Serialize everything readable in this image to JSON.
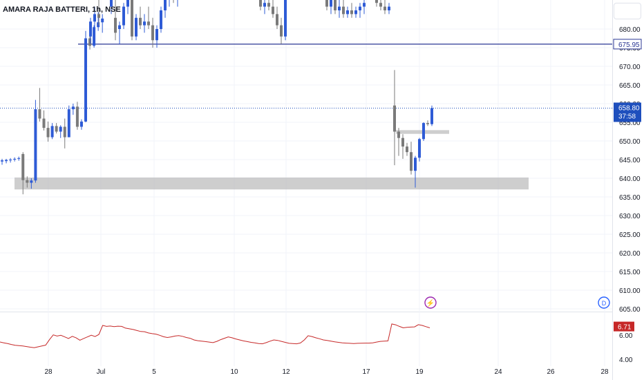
{
  "symbol_title": "AMARA RAJA BATTERI, 1h, NSE",
  "colors": {
    "up": "#2e5bd6",
    "down": "#7a7a7a",
    "hline": "#283593",
    "zone": "#bdbdbd",
    "osc": "#c62828",
    "grid": "#f0f3fa",
    "axis_text": "#131722",
    "price_tag": "#1e4fbd",
    "osc_tag": "#c62828",
    "event_icon": "#9c27b0",
    "div_icon": "#2962ff"
  },
  "icons": {
    "event": "lightning-icon",
    "dividend": "D"
  },
  "price_axis": {
    "ticks": [
      "680.00",
      "675.00",
      "670.00",
      "665.00",
      "660.00",
      "655.00",
      "650.00",
      "645.00",
      "640.00",
      "635.00",
      "630.00",
      "625.00",
      "620.00",
      "615.00",
      "610.00",
      "605.00"
    ]
  },
  "osc_axis": {
    "ticks": [
      "6.00",
      "4.00"
    ]
  },
  "time_axis": {
    "labels": [
      "28",
      "Jul",
      "5",
      "10",
      "12",
      "17",
      "19",
      "24",
      "26",
      "28"
    ]
  },
  "labels": {
    "hline_price": "675.95",
    "last_price": "658.80",
    "countdown": "37:58",
    "osc_value": "6.71"
  },
  "chart_data": [
    {
      "type": "candlestick",
      "title": "AMARA RAJA BATTERI, 1h, NSE",
      "ylim": [
        603,
        686
      ],
      "candles": [
        {
          "o": 644.5,
          "h": 645.2,
          "l": 643.6,
          "c": 644.8
        },
        {
          "o": 644.6,
          "h": 645.2,
          "l": 644.0,
          "c": 644.9
        },
        {
          "o": 644.8,
          "h": 645.4,
          "l": 644.2,
          "c": 645.0
        },
        {
          "o": 645.0,
          "h": 645.6,
          "l": 644.5,
          "c": 645.2
        },
        {
          "o": 645.2,
          "h": 645.8,
          "l": 644.7,
          "c": 645.4
        },
        {
          "o": 646.5,
          "h": 647.0,
          "l": 635.7,
          "c": 639.5
        },
        {
          "o": 639.5,
          "h": 640.5,
          "l": 637.5,
          "c": 638.8
        },
        {
          "o": 638.8,
          "h": 640.0,
          "l": 637.2,
          "c": 639.4
        },
        {
          "o": 639.4,
          "h": 661.0,
          "l": 638.8,
          "c": 658.5
        },
        {
          "o": 658.5,
          "h": 664.2,
          "l": 655.2,
          "c": 656.0
        },
        {
          "o": 656.0,
          "h": 658.2,
          "l": 652.8,
          "c": 653.5
        },
        {
          "o": 653.5,
          "h": 655.2,
          "l": 649.8,
          "c": 651.0
        },
        {
          "o": 651.0,
          "h": 654.8,
          "l": 650.5,
          "c": 654.0
        },
        {
          "o": 654.0,
          "h": 654.8,
          "l": 652.0,
          "c": 652.5
        },
        {
          "o": 652.5,
          "h": 654.2,
          "l": 650.8,
          "c": 653.8
        },
        {
          "o": 653.8,
          "h": 656.0,
          "l": 648.0,
          "c": 651.0
        },
        {
          "o": 651.0,
          "h": 659.5,
          "l": 651.0,
          "c": 658.5
        },
        {
          "o": 658.5,
          "h": 660.0,
          "l": 657.0,
          "c": 659.2
        },
        {
          "o": 659.2,
          "h": 660.5,
          "l": 653.0,
          "c": 653.8
        },
        {
          "o": 653.8,
          "h": 655.8,
          "l": 653.0,
          "c": 655.2
        },
        {
          "o": 655.2,
          "h": 679.5,
          "l": 655.0,
          "c": 677.5
        },
        {
          "o": 677.5,
          "h": 680.5,
          "l": 674.5,
          "c": 675.5
        },
        {
          "o": 675.5,
          "h": 681.0,
          "l": 675.0,
          "c": 680.5
        },
        {
          "o": 680.5,
          "h": 684.5,
          "l": 679.5,
          "c": 681.8
        },
        {
          "o": 681.8,
          "h": 684.0,
          "l": 679.0,
          "c": 682.8
        }
      ],
      "segments": [
        {
          "x0": 571,
          "dx": 6,
          "candles": [
            {
              "o": 659.5,
              "h": 669.0,
              "l": 643.5,
              "c": 652.5
            },
            {
              "o": 652.5,
              "h": 653.5,
              "l": 646.0,
              "c": 650.8
            },
            {
              "o": 650.8,
              "h": 651.8,
              "l": 645.2,
              "c": 648.5
            },
            {
              "o": 648.5,
              "h": 649.5,
              "l": 646.0,
              "c": 647.0
            },
            {
              "o": 647.0,
              "h": 649.8,
              "l": 641.0,
              "c": 642.0
            },
            {
              "o": 642.0,
              "h": 646.0,
              "l": 637.5,
              "c": 645.5
            },
            {
              "o": 645.5,
              "h": 650.8,
              "l": 644.5,
              "c": 650.5
            },
            {
              "o": 650.5,
              "h": 655.0,
              "l": 650.0,
              "c": 654.8
            },
            {
              "o": 654.8,
              "h": 655.5,
              "l": 654.0,
              "c": 654.5
            },
            {
              "o": 654.5,
              "h": 659.5,
              "l": 654.0,
              "c": 658.8
            }
          ]
        }
      ],
      "hlines": [
        {
          "value": 675.95
        }
      ],
      "zones": [
        {
          "y0": 637.0,
          "y1": 640.2
        },
        {
          "y0": 651.9,
          "y1": 652.9
        }
      ],
      "last_price": 658.8
    },
    {
      "type": "line",
      "ylim": [
        3.8,
        7.4
      ],
      "values": [
        5.43,
        5.36,
        5.3,
        5.22,
        5.16,
        5.13,
        5.1,
        5.05,
        5.0,
        4.96,
        5.03,
        5.1,
        5.17,
        5.62,
        6.02,
        5.92,
        5.98,
        5.85,
        5.72,
        5.9,
        5.78,
        5.58,
        5.72,
        5.85,
        5.99,
        5.88,
        6.05,
        6.8,
        6.72,
        6.75,
        6.7,
        6.74,
        6.72,
        6.58,
        6.52,
        6.46,
        6.38,
        6.3,
        6.28,
        6.18,
        6.12,
        6.08,
        5.98,
        5.86,
        5.8,
        5.85,
        5.92,
        5.96,
        5.9,
        5.8,
        5.74,
        5.6,
        5.54,
        5.5,
        5.46,
        5.42,
        5.38,
        5.48,
        5.62,
        5.74,
        5.85,
        5.78,
        5.68,
        5.6,
        5.52,
        5.46,
        5.4,
        5.36,
        5.3,
        5.28,
        5.38,
        5.5,
        5.6,
        5.56,
        5.48,
        5.4,
        5.32,
        5.3,
        5.28,
        5.35,
        5.6,
        5.95,
        5.88,
        5.78,
        5.7,
        5.6,
        5.56,
        5.5,
        5.44,
        5.4,
        5.36,
        5.34,
        5.32,
        5.3,
        5.32,
        5.33,
        5.34,
        5.34,
        5.36,
        5.42,
        5.48,
        5.5,
        5.52,
        6.92,
        6.85,
        6.72,
        6.6,
        6.64,
        6.66,
        6.68,
        6.86,
        6.8,
        6.7,
        6.6
      ],
      "last_value": 6.71
    }
  ]
}
